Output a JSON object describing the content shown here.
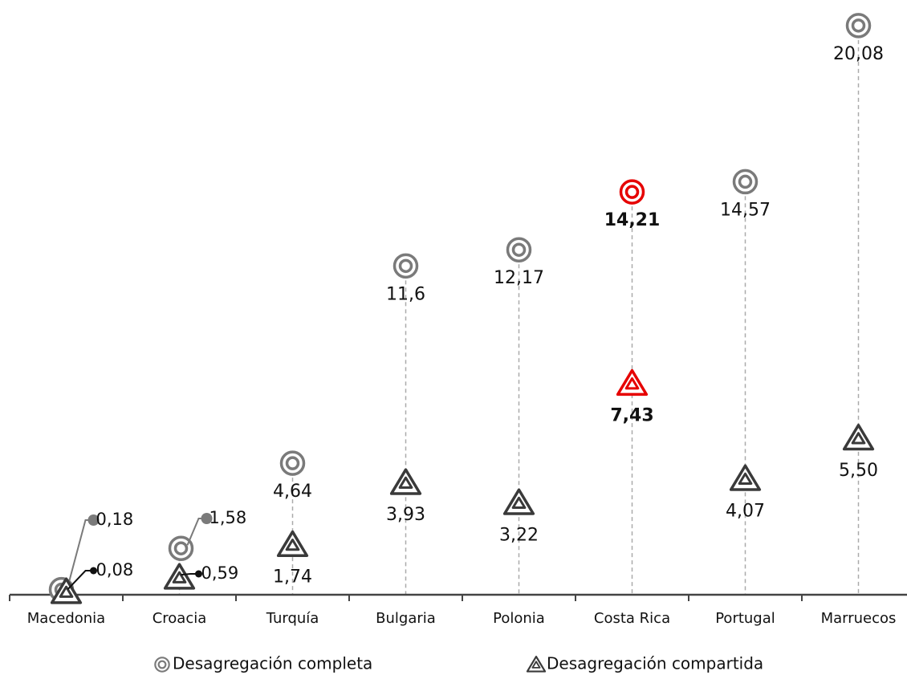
{
  "chart_data": {
    "type": "dot",
    "categories": [
      "Macedonia",
      "Croacia",
      "Turquía",
      "Bulgaria",
      "Polonia",
      "Costa Rica",
      "Portugal",
      "Marruecos"
    ],
    "series": [
      {
        "name": "Desagregación completa",
        "marker": "circle",
        "color": "#7a7a7a",
        "colors": [
          "#7a7a7a",
          "#7a7a7a",
          "#7a7a7a",
          "#7a7a7a",
          "#7a7a7a",
          "#e60000",
          "#7a7a7a",
          "#7a7a7a"
        ],
        "values": [
          0.18,
          1.58,
          4.64,
          11.6,
          12.17,
          14.21,
          14.57,
          20.08
        ],
        "value_labels": [
          "0,18",
          "1,58",
          "4,64",
          "11,6",
          "12,17",
          "14,21",
          "14,57",
          "20,08"
        ]
      },
      {
        "name": "Desagregación compartida",
        "marker": "triangle",
        "color": "#3a3a3a",
        "colors": [
          "#3a3a3a",
          "#3a3a3a",
          "#3a3a3a",
          "#3a3a3a",
          "#3a3a3a",
          "#e60000",
          "#3a3a3a",
          "#3a3a3a"
        ],
        "values": [
          0.08,
          0.59,
          1.74,
          3.93,
          3.22,
          7.43,
          4.07,
          5.5
        ],
        "value_labels": [
          "0,08",
          "0,59",
          "1,74",
          "3,93",
          "3,22",
          "7,43",
          "4,07",
          "5,50"
        ]
      }
    ],
    "ylim": [
      0,
      20.5
    ],
    "legend": "bottom"
  }
}
